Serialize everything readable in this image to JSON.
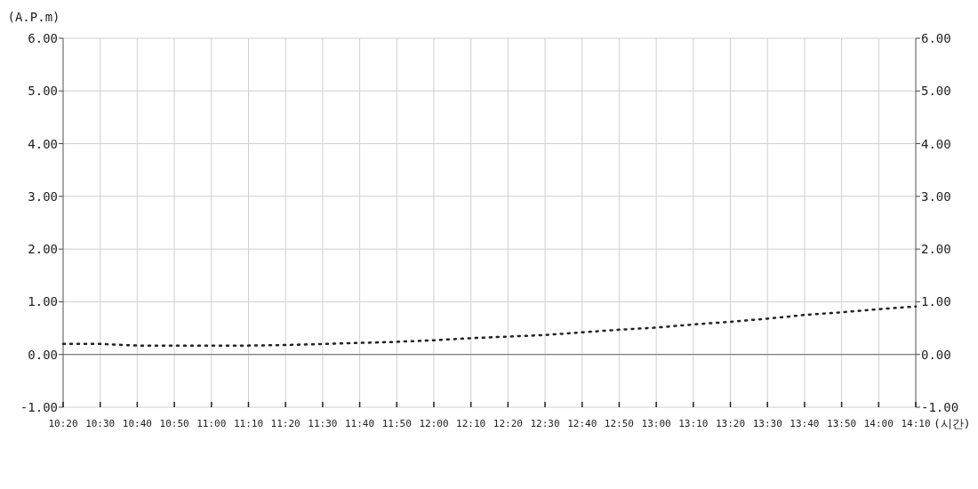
{
  "chart_data": {
    "type": "line",
    "ylabel": "(A.P.m)",
    "xlabel": "(시간)",
    "categories": [
      "10:20",
      "10:30",
      "10:40",
      "10:50",
      "11:00",
      "11:10",
      "11:20",
      "11:30",
      "11:40",
      "11:50",
      "12:00",
      "12:10",
      "12:20",
      "12:30",
      "12:40",
      "12:50",
      "13:00",
      "13:10",
      "13:20",
      "13:30",
      "13:40",
      "13:50",
      "14:00",
      "14:10"
    ],
    "series": [
      {
        "color": "#222222",
        "values": [
          0.2,
          0.2,
          0.17,
          0.17,
          0.17,
          0.17,
          0.18,
          0.2,
          0.22,
          0.24,
          0.27,
          0.31,
          0.34,
          0.37,
          0.42,
          0.47,
          0.51,
          0.57,
          0.62,
          0.68,
          0.75,
          0.8,
          0.86,
          0.91
        ]
      }
    ],
    "ylim": [
      -1,
      6
    ],
    "yticks": [
      {
        "value": -1,
        "label": "-1.00"
      },
      {
        "value": 0,
        "label": "0.00"
      },
      {
        "value": 1,
        "label": "1.00"
      },
      {
        "value": 2,
        "label": "2.00"
      },
      {
        "value": 3,
        "label": "3.00"
      },
      {
        "value": 4,
        "label": "4.00"
      },
      {
        "value": 5,
        "label": "5.00"
      },
      {
        "value": 6,
        "label": "6.00"
      }
    ],
    "y2lim": [
      -1,
      6
    ],
    "y2ticks": [
      {
        "value": -1,
        "label": "-1.00"
      },
      {
        "value": 0,
        "label": "0.00"
      },
      {
        "value": 1,
        "label": "1.00"
      },
      {
        "value": 2,
        "label": "2.00"
      },
      {
        "value": 3,
        "label": "3.00"
      },
      {
        "value": 4,
        "label": "4.00"
      },
      {
        "value": 5,
        "label": "5.00"
      },
      {
        "value": 6,
        "label": "6.00"
      }
    ],
    "ref_lines": [
      {
        "axis": "y",
        "value": 0,
        "color": "#666666"
      }
    ],
    "grid": true,
    "line_style": "dotted",
    "marker": "none"
  }
}
